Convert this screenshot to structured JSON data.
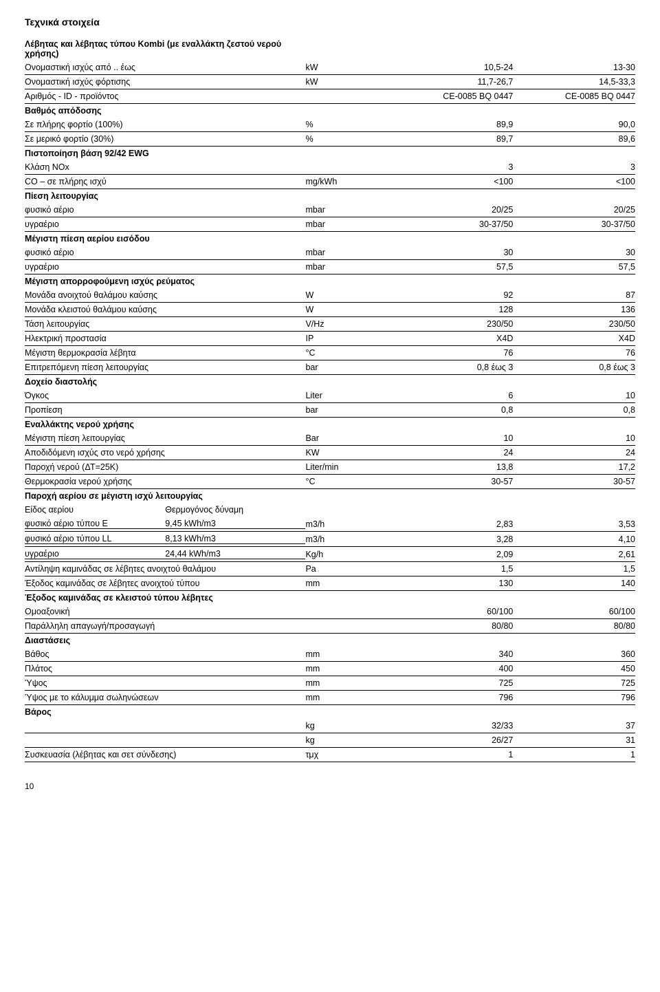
{
  "title": "Τεχνικά στοιχεία",
  "footer_page": "10",
  "rows": [
    {
      "bold": true,
      "hr": false,
      "label": "Λέβητας και λέβητας τύπου Kombi (με εναλλάκτη ζεστού νερού χρήσης)",
      "unit": "",
      "v1": "",
      "v2": ""
    },
    {
      "bold": false,
      "hr": true,
      "label": "Ονομαστική ισχύς από .. έως",
      "unit": "kW",
      "v1": "10,5-24",
      "v2": "13-30"
    },
    {
      "bold": false,
      "hr": true,
      "label": "Ονομαστική ισχύς φόρτισης",
      "unit": "kW",
      "v1": "11,7-26,7",
      "v2": "14,5-33,3"
    },
    {
      "bold": false,
      "hr": true,
      "label": "Αριθμός - ID - προϊόντος",
      "unit": "",
      "v1": "CE-0085 BQ 0447",
      "v2": "CE-0085 BQ 0447"
    },
    {
      "bold": true,
      "hr": false,
      "label": "Βαθμός απόδοσης",
      "unit": "",
      "v1": "",
      "v2": ""
    },
    {
      "bold": false,
      "hr": true,
      "label": "Σε πλήρης φορτίο (100%)",
      "unit": "%",
      "v1": "89,9",
      "v2": "90,0"
    },
    {
      "bold": false,
      "hr": true,
      "label": "Σε μερικό φορτίο (30%)",
      "unit": "%",
      "v1": "89,7",
      "v2": "89,6"
    },
    {
      "bold": true,
      "hr": false,
      "label": "Πιστοποίηση βάση 92/42 EWG",
      "unit": "",
      "v1": "",
      "v2": ""
    },
    {
      "bold": false,
      "hr": true,
      "label": "Κλάση NOx",
      "unit": "",
      "v1": "3",
      "v2": "3"
    },
    {
      "bold": false,
      "hr": true,
      "label": "CO – σε πλήρης ισχύ",
      "unit": "mg/kWh",
      "v1": "<100",
      "v2": "<100"
    },
    {
      "bold": true,
      "hr": false,
      "label": "Πίεση λειτουργίας",
      "unit": "",
      "v1": "",
      "v2": ""
    },
    {
      "bold": false,
      "hr": true,
      "label": "φυσικό αέριο",
      "unit": "mbar",
      "v1": "20/25",
      "v2": "20/25"
    },
    {
      "bold": false,
      "hr": true,
      "label": "υγραέριο",
      "unit": "mbar",
      "v1": "30-37/50",
      "v2": "30-37/50"
    },
    {
      "bold": true,
      "hr": false,
      "label": "Μέγιστη πίεση αερίου εισόδου",
      "unit": "",
      "v1": "",
      "v2": ""
    },
    {
      "bold": false,
      "hr": true,
      "label": "φυσικό αέριο",
      "unit": "mbar",
      "v1": "30",
      "v2": "30"
    },
    {
      "bold": false,
      "hr": true,
      "label": "υγραέριο",
      "unit": "mbar",
      "v1": "57,5",
      "v2": "57,5"
    },
    {
      "bold": true,
      "hr": false,
      "label": "Μέγιστη απορροφούμενη ισχύς ρεύματος",
      "unit": "",
      "v1": "",
      "v2": ""
    },
    {
      "bold": false,
      "hr": true,
      "label": "Μονάδα ανοιχτού θαλάμου καύσης",
      "unit": "W",
      "v1": "92",
      "v2": "87"
    },
    {
      "bold": false,
      "hr": true,
      "label": "Μονάδα κλειστού θαλάμου καύσης",
      "unit": "W",
      "v1": "128",
      "v2": "136"
    },
    {
      "bold": false,
      "hr": true,
      "label": "Τάση λειτουργίας",
      "unit": "V/Hz",
      "v1": "230/50",
      "v2": "230/50"
    },
    {
      "bold": false,
      "hr": true,
      "label": "Ηλεκτρική προστασία",
      "unit": "IP",
      "v1": "X4D",
      "v2": "X4D"
    },
    {
      "bold": false,
      "hr": true,
      "label": "Μέγιστη θερμοκρασία λέβητα",
      "unit": "°C",
      "v1": "76",
      "v2": "76"
    },
    {
      "bold": false,
      "hr": true,
      "label": "Επιτρεπόμενη πίεση λειτουργίας",
      "unit": "bar",
      "v1": "0,8 έως 3",
      "v2": "0,8 έως 3"
    },
    {
      "bold": true,
      "hr": false,
      "label": "Δοχείο διαστολής",
      "unit": "",
      "v1": "",
      "v2": ""
    },
    {
      "bold": false,
      "hr": true,
      "label": "Όγκος",
      "unit": "Liter",
      "v1": "6",
      "v2": "10"
    },
    {
      "bold": false,
      "hr": true,
      "label": "Προπίεση",
      "unit": "bar",
      "v1": "0,8",
      "v2": "0,8"
    },
    {
      "bold": true,
      "hr": false,
      "label": "Εναλλάκτης νερού χρήσης",
      "unit": "",
      "v1": "",
      "v2": ""
    },
    {
      "bold": false,
      "hr": true,
      "label": "Μέγιστη πίεση λειτουργίας",
      "unit": "Bar",
      "v1": "10",
      "v2": "10"
    },
    {
      "bold": false,
      "hr": true,
      "label": "Αποδιδόμενη ισχύς στο νερό χρήσης",
      "unit": "KW",
      "v1": "24",
      "v2": "24"
    },
    {
      "bold": false,
      "hr": true,
      "label": "Παροχή νερού (ΔΤ=25Κ)",
      "unit": "Liter/min",
      "v1": "13,8",
      "v2": "17,2"
    },
    {
      "bold": false,
      "hr": true,
      "label": "Θερμοκρασία νερού χρήσης",
      "unit": "°C",
      "v1": "30-57",
      "v2": "30-57"
    },
    {
      "bold": true,
      "hr": false,
      "label": "Παροχή αερίου σε μέγιστη ισχύ λειτουργίας",
      "unit": "",
      "v1": "",
      "v2": ""
    },
    {
      "bold": false,
      "hr": false,
      "label_a": "Είδος αερίου",
      "label_b": "Θερμογόνος δύναμη",
      "split": true,
      "unit": "",
      "v1": "",
      "v2": ""
    },
    {
      "bold": false,
      "hr": true,
      "label_a": "φυσικό αέριο τύπου  E",
      "label_b": "9,45 kWh/m3",
      "split": true,
      "unit": "m3/h",
      "v1": "2,83",
      "v2": "3,53"
    },
    {
      "bold": false,
      "hr": true,
      "label_a": "φυσικό αέριο τύπου LL",
      "label_b": "8,13 kWh/m3",
      "split": true,
      "unit": "m3/h",
      "v1": "3,28",
      "v2": "4,10"
    },
    {
      "bold": false,
      "hr": true,
      "label_a": "υγραέριο",
      "label_b": "24,44 kWh/m3",
      "split": true,
      "unit": "Kg/h",
      "v1": "2,09",
      "v2": "2,61"
    },
    {
      "bold": false,
      "hr": true,
      "label": "Αντίληψη καμινάδας σε λέβητες ανοιχτού θαλάμου",
      "unit": "Pa",
      "v1": "1,5",
      "v2": "1,5"
    },
    {
      "bold": false,
      "hr": true,
      "label": "Έξοδος καμινάδας σε λέβητες ανοιχτού τύπου",
      "unit": "mm",
      "v1": "130",
      "v2": "140"
    },
    {
      "bold": true,
      "hr": false,
      "label": "Έξοδος καμινάδας σε κλειστού τύπου λέβητες",
      "unit": "",
      "v1": "",
      "v2": ""
    },
    {
      "bold": false,
      "hr": true,
      "label": "Ομοαξονική",
      "unit": "",
      "v1": "60/100",
      "v2": "60/100"
    },
    {
      "bold": false,
      "hr": true,
      "label": "Παράλληλη απαγωγή/προσαγωγή",
      "unit": "",
      "v1": "80/80",
      "v2": "80/80"
    },
    {
      "bold": true,
      "hr": false,
      "label": "Διαστάσεις",
      "unit": "",
      "v1": "",
      "v2": ""
    },
    {
      "bold": false,
      "hr": true,
      "label": "Βάθος",
      "unit": "mm",
      "v1": "340",
      "v2": "360"
    },
    {
      "bold": false,
      "hr": true,
      "label": "Πλάτος",
      "unit": "mm",
      "v1": "400",
      "v2": "450"
    },
    {
      "bold": false,
      "hr": true,
      "label": "Ύψος",
      "unit": "mm",
      "v1": "725",
      "v2": "725"
    },
    {
      "bold": false,
      "hr": true,
      "label": "Ύψος με το κάλυμμα σωληνώσεων",
      "unit": "mm",
      "v1": "796",
      "v2": "796"
    },
    {
      "bold": true,
      "hr": false,
      "label": "Βάρος",
      "unit": "",
      "v1": "",
      "v2": ""
    },
    {
      "bold": false,
      "hr": true,
      "label": "",
      "unit": "kg",
      "v1": "32/33",
      "v2": "37"
    },
    {
      "bold": false,
      "hr": true,
      "label": "",
      "unit": "kg",
      "v1": "26/27",
      "v2": "31"
    },
    {
      "bold": false,
      "hr": true,
      "label": "Συσκευασία (λέβητας και σετ σύνδεσης)",
      "unit": "τμχ",
      "v1": "1",
      "v2": "1"
    }
  ]
}
